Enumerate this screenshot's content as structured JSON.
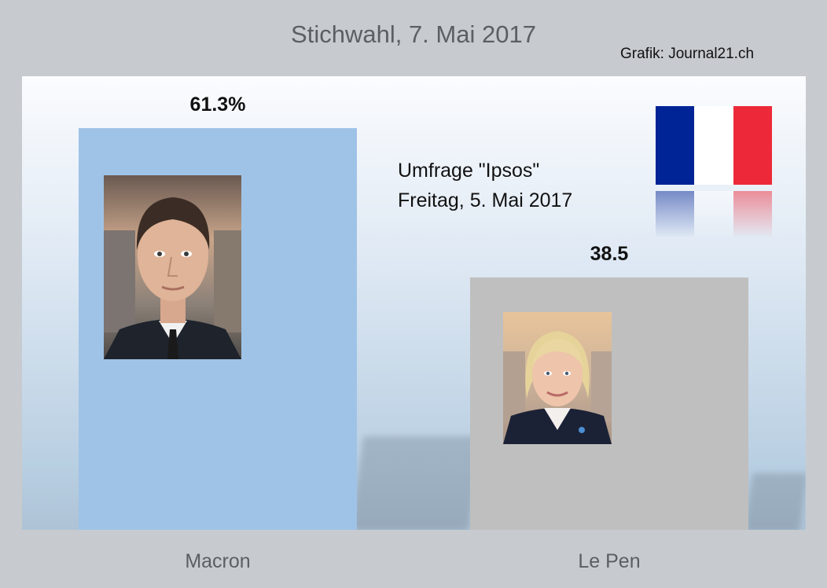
{
  "chart_data": {
    "type": "bar",
    "title": "Stichwahl, 7. Mai 2017",
    "categories": [
      "Macron",
      "Le Pen"
    ],
    "values": [
      61.3,
      38.5
    ],
    "value_labels": [
      "61.3%",
      "38.5"
    ],
    "colors": [
      "#9fc3e6",
      "#bfbfbf"
    ],
    "ylim": [
      0,
      70
    ],
    "grid": false,
    "legend": "none"
  },
  "credit": "Grafik: Journal21.ch",
  "annotation": {
    "line1": "Umfrage \"Ipsos\"",
    "line2": "Freitag, 5. Mai 2017"
  },
  "flag_colors": [
    "#002395",
    "#ffffff",
    "#ed2939"
  ]
}
